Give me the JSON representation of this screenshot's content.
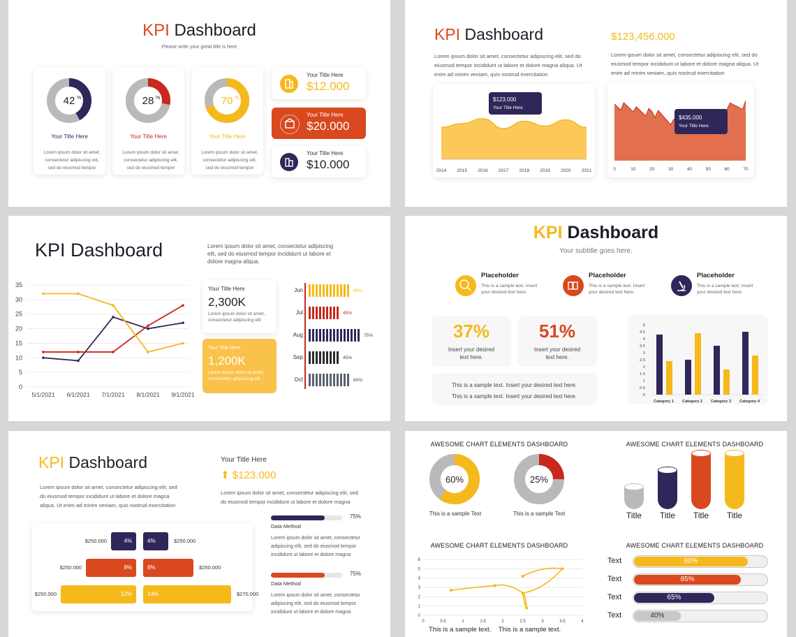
{
  "colors": {
    "navy": "#2f2759",
    "red": "#c9281c",
    "orange": "#d9481f",
    "yellow": "#f6b91c",
    "gray": "#b9b9b9"
  },
  "slide1": {
    "title_kpi": "KPI",
    "title_rest": "Dashboard",
    "subtitle": "Please write your great title is here",
    "donuts": [
      {
        "value": 42,
        "display": "42",
        "pct": "%",
        "title": "Your Title Here",
        "color": "#2f2759",
        "text": [
          "Lorem ipsum dolor sit amet,",
          "consectetur adipiscing elit,",
          "sed do eiusmod tempor"
        ]
      },
      {
        "value": 28,
        "display": "28",
        "pct": "%",
        "title": "Your Title Here",
        "color": "#c9281c",
        "text": [
          "Lorem ipsum dolor sit amet,",
          "consectetur adipiscing elit,",
          "sed do eiusmod tempor"
        ]
      },
      {
        "value": 70,
        "display": "70",
        "pct": "%",
        "title": "Your Title Here",
        "color": "#f6b91c",
        "text": [
          "Lorem ipsum dolor sit amet,",
          "consectetur adipiscing elit,",
          "sed do eiusmod tempor"
        ]
      }
    ],
    "stats": [
      {
        "label": "Your Title Here",
        "value": "$12.000",
        "icon": "building-icon"
      },
      {
        "label": "Your Title Here",
        "value": "$20.000",
        "icon": "store-icon"
      },
      {
        "label": "Your Title Here",
        "value": "$10.000",
        "icon": "office-icon"
      }
    ]
  },
  "slide2": {
    "title_kpi": "KPI",
    "title_rest": "Dashboard",
    "left_text": [
      "Lorem ipsum dolor sit amet, consectetur adipiscing elit, sed do",
      "eiusmod tempor incididunt ut labore et dolore magna aliqua. Ut",
      "enim ad minim veniam, quis nostrud exercitation"
    ],
    "amount": "$123,456.000",
    "right_text": [
      "Lorem ipsum dolor sit amet, consectetur adipiscing elit, sed do",
      "eiusmod tempor incididunt ut labore et dolore magna aliqua. Ut",
      "enim ad minim veniam, quis nostrud exercitation"
    ],
    "area_tooltip": {
      "value": "$123.000",
      "label": "Your Title Here"
    },
    "noise_tooltip": {
      "value": "$435.000",
      "label": "Your Title Here"
    }
  },
  "slide3": {
    "title": "KPI Dashboard",
    "text": [
      "Lorem ipsum dolor sit amet, consectetur adipiscing",
      "elit, sed do eiusmod tempor incididunt ut labore et",
      "dolore magna aliqua."
    ],
    "card1": {
      "label": "Your Title Here",
      "value": "2,300K",
      "text": [
        "Lorem ipsum dolor sit amet,",
        "consectetur adipiscing elit"
      ]
    },
    "card2": {
      "label": "Your Title Here",
      "value": "1,200K",
      "text": [
        "Lorem ipsum dolor sit amet,",
        "consectetur adipiscing elit"
      ]
    },
    "tick_bars": [
      {
        "month": "Jun",
        "pct": "60%",
        "value": 60,
        "color": "#f6b91c"
      },
      {
        "month": "Jul",
        "pct": "45%",
        "value": 45,
        "color": "#c9281c"
      },
      {
        "month": "Aug",
        "pct": "75%",
        "value": 75,
        "color": "#2f2759"
      },
      {
        "month": "Sep",
        "pct": "45%",
        "value": 45,
        "color": "#2b2b2b"
      },
      {
        "month": "Oct",
        "pct": "60%",
        "value": 60,
        "color": "#5b6270"
      }
    ]
  },
  "slide4": {
    "title_kpi": "KPI",
    "title_rest": "Dashboard",
    "subtitle": "Your subtitle goes here.",
    "placeholders": [
      {
        "title": "Placeholder",
        "text": [
          "This is a sample text. Insert",
          "your desired text here."
        ],
        "icon": "search-chart-icon",
        "color": "#f6b91c"
      },
      {
        "title": "Placeholder",
        "text": [
          "This is a sample text. Insert",
          "your desired text here."
        ],
        "icon": "book-icon",
        "color": "#d9481f"
      },
      {
        "title": "Placeholder",
        "text": [
          "This is a sample text. Insert",
          "your desired text here."
        ],
        "icon": "microscope-icon",
        "color": "#2f2759"
      }
    ],
    "stat1": {
      "value": "37%",
      "text": [
        "Insert your desired",
        "text here."
      ]
    },
    "stat2": {
      "value": "51%",
      "text": [
        "Insert your desired",
        "text here."
      ]
    },
    "sample": [
      "This is a sample text. Insert your desired text here.",
      "This is a sample text. Insert your desired text here."
    ]
  },
  "slide5": {
    "title_kpi": "KPI",
    "title_rest": "Dashboard",
    "text": [
      "Lorem ipsum dolor sit amet, consectetur adipiscing elit, sed",
      "do eiusmod tempor incididunt ut labore et dolore magna",
      "aliqua. Ut enim ad minim veniam, quis nostrud exercitation"
    ],
    "right_title": "Your Title Here",
    "right_amount": "$123.000",
    "right_text": [
      "Lorem ipsum dolor sit amet, consectetur adipiscing elit, sed",
      "do eiusmod tempor incididunt ut labore et dolore magna"
    ],
    "methods": [
      {
        "label": "Data Method",
        "pct": "75%",
        "value": 75,
        "color": "#2f2759",
        "text": [
          "Lorem ipsum dolor sit amet, consectetur",
          "adipiscing elit, sed do eiusmod tempor",
          "incididunt ut labore et dolore magna"
        ]
      },
      {
        "label": "Data Method",
        "pct": "75%",
        "value": 75,
        "color": "#d9481f",
        "text": [
          "Lorem ipsum dolor sit amet, consectetur",
          "adipiscing elit, sed do eiusmod tempor",
          "incididunt ut labore et dolore magna"
        ]
      }
    ],
    "butterfly": [
      {
        "left_amount": "$250.000",
        "left_pct": "4%",
        "right_pct": "4%",
        "right_amount": "$250.000",
        "left_value": 4,
        "right_value": 4,
        "color": "#2f2759"
      },
      {
        "left_amount": "$250.000",
        "left_pct": "8%",
        "right_pct": "8%",
        "right_amount": "$250.000",
        "left_value": 8,
        "right_value": 8,
        "color": "#d9481f"
      },
      {
        "left_amount": "$250.000",
        "left_pct": "12%",
        "right_pct": "14%",
        "right_amount": "$270.000",
        "left_value": 12,
        "right_value": 14,
        "color": "#f6b91c"
      }
    ]
  },
  "slide6": {
    "heading_tl": "AWESOME CHART ELEMENTS DASHBOARD",
    "heading_tr": "AWESOME CHART ELEMENTS DASHBOARD",
    "heading_bl": "AWESOME CHART ELEMENTS DASHBOARD",
    "heading_br": "AWESOME CHART ELEMENTS DASHBOARD",
    "donuts": [
      {
        "value": 60,
        "display": "60%",
        "color": "#f6b91c",
        "caption": "This is a sample Text"
      },
      {
        "value": 25,
        "display": "25%",
        "color": "#c9281c",
        "caption": "This is a sample Text"
      }
    ],
    "cylinders": [
      {
        "label": "Title",
        "value": 1,
        "color": "#b9b9b9"
      },
      {
        "label": "Title",
        "value": 2,
        "color": "#2f2759"
      },
      {
        "label": "Title",
        "value": 3,
        "color": "#d9481f"
      },
      {
        "label": "Title",
        "value": 3,
        "color": "#f6b91c"
      }
    ],
    "captions_bottom": [
      "This is a sample text.",
      "This is a sample text."
    ],
    "progress": [
      {
        "label": "Text",
        "display": "90%",
        "value": 90,
        "color": "#f6b91c"
      },
      {
        "label": "Text",
        "display": "85%",
        "value": 85,
        "color": "#d9481f"
      },
      {
        "label": "Text",
        "display": "65%",
        "value": 65,
        "color": "#2f2759"
      },
      {
        "label": "Text",
        "display": "40%",
        "value": 40,
        "color": "#c8c8c8"
      }
    ]
  },
  "chart_data": [
    {
      "id": "area-chart",
      "type": "area",
      "title": "",
      "x": [
        "2014",
        "2015",
        "2016",
        "2017",
        "2018",
        "2019",
        "2020",
        "2021"
      ],
      "series": [
        {
          "values": [
            52,
            58,
            66,
            50,
            62,
            54,
            64,
            52
          ]
        }
      ],
      "ylim": [
        0,
        100
      ]
    },
    {
      "id": "noisy-area-chart",
      "type": "area",
      "title": "",
      "x": [
        "0",
        "10",
        "20",
        "30",
        "40",
        "50",
        "60",
        "70"
      ],
      "series": [
        {
          "values": [
            78,
            72,
            66,
            56,
            52,
            50,
            72,
            78
          ]
        }
      ],
      "ylim": [
        0,
        100
      ]
    },
    {
      "id": "line-chart",
      "type": "line",
      "title": "",
      "x": [
        "5/1/2021",
        "6/1/2021",
        "7/1/2021",
        "8/1/2021",
        "9/1/2021"
      ],
      "series": [
        {
          "values": [
            10,
            9,
            24,
            20,
            22
          ],
          "color": "#2f2759"
        },
        {
          "values": [
            12,
            12,
            12,
            21,
            28
          ],
          "color": "#c9281c"
        },
        {
          "values": [
            32,
            32,
            28,
            12,
            15
          ],
          "color": "#f6b91c"
        }
      ],
      "ylim": [
        0,
        35
      ],
      "yticks": [
        0,
        5,
        10,
        15,
        20,
        25,
        30,
        35
      ],
      "grid": true
    },
    {
      "id": "bar-chart",
      "type": "bar",
      "title": "",
      "categories": [
        "Category 1",
        "Category 2",
        "Category 3",
        "Category 4"
      ],
      "series": [
        {
          "values": [
            4.3,
            2.5,
            3.5,
            4.5
          ],
          "color": "#2f2759"
        },
        {
          "values": [
            2.4,
            4.4,
            1.8,
            2.8
          ],
          "color": "#f6b91c"
        }
      ],
      "ylim": [
        0,
        5
      ],
      "yticks": [
        0,
        0.5,
        1,
        1.5,
        2,
        2.5,
        3,
        3.5,
        4,
        4.5,
        5
      ],
      "grid": false
    },
    {
      "id": "scatter-line-chart",
      "type": "line",
      "title": "",
      "points": [
        [
          0.7,
          2.7
        ],
        [
          1.8,
          3.2
        ],
        [
          2.5,
          2.4
        ],
        [
          2.6,
          0.8
        ],
        [
          2.5,
          2.4
        ],
        [
          3.5,
          5
        ],
        [
          2.5,
          4.2
        ]
      ],
      "xlim": [
        0,
        4
      ],
      "ylim": [
        0,
        6
      ],
      "xticks": [
        0,
        0.5,
        1,
        1.5,
        2,
        2.5,
        3,
        3.5,
        4
      ],
      "yticks": [
        0,
        1,
        2,
        3,
        4,
        5,
        6
      ],
      "grid": true
    }
  ]
}
